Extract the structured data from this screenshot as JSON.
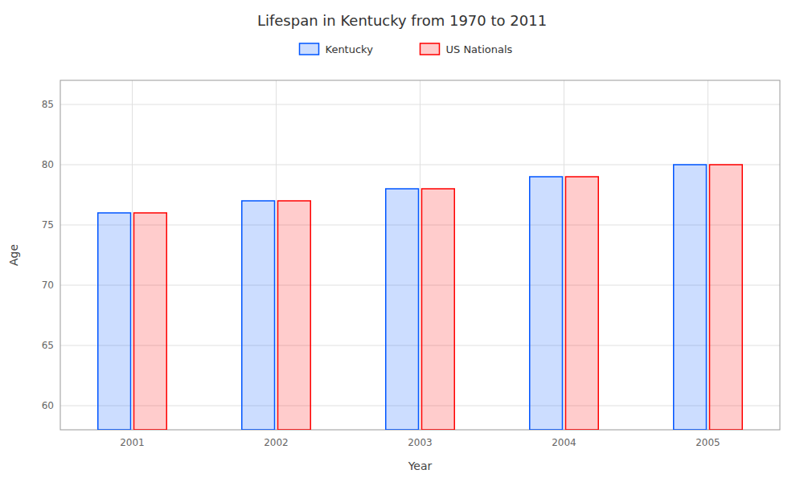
{
  "chart_data": {
    "type": "bar",
    "title": "Lifespan in Kentucky from 1970 to 2011",
    "xlabel": "Year",
    "ylabel": "Age",
    "categories": [
      "2001",
      "2002",
      "2003",
      "2004",
      "2005"
    ],
    "series": [
      {
        "name": "Kentucky",
        "color": "#0055ff",
        "values": [
          76,
          77,
          78,
          79,
          80
        ]
      },
      {
        "name": "US Nationals",
        "color": "#ff0000",
        "values": [
          76,
          77,
          78,
          79,
          80
        ]
      }
    ],
    "ylim": [
      58,
      87
    ],
    "yticks": [
      60,
      65,
      70,
      75,
      80,
      85
    ],
    "grid": true,
    "legend": "top"
  }
}
